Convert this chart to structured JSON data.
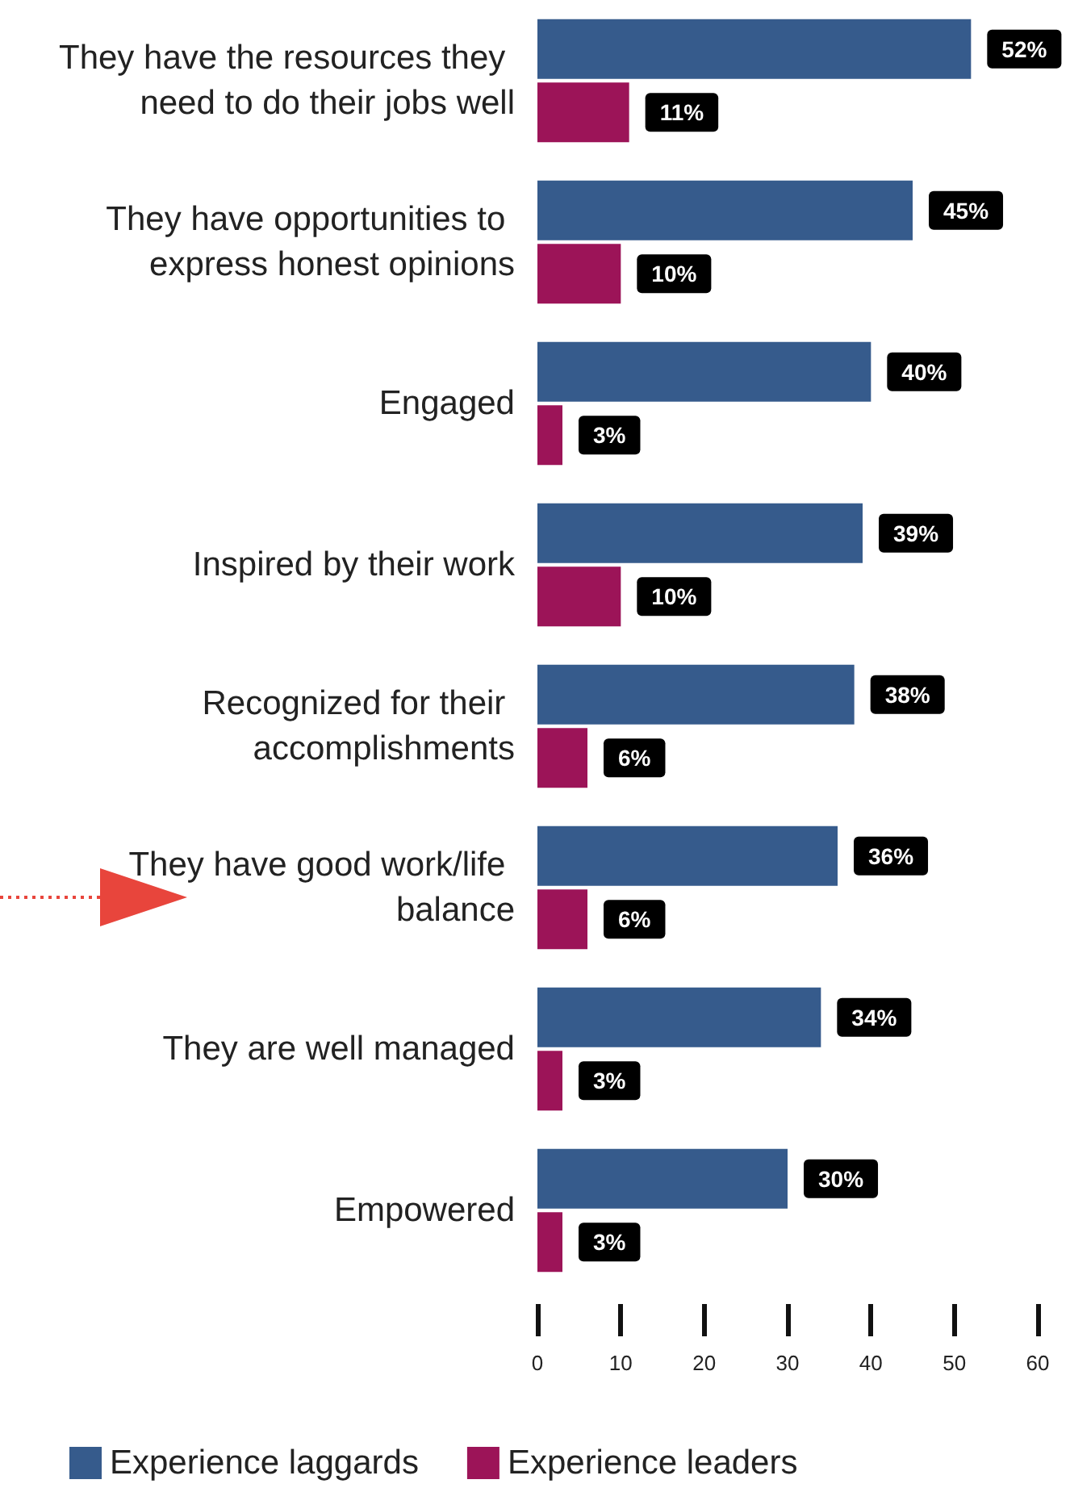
{
  "chart_data": {
    "type": "bar",
    "orientation": "horizontal",
    "categories": [
      "They have the resources they need to do their jobs well",
      "They have opportunities to express honest opinions",
      "Engaged",
      "Inspired by their work",
      "Recognized for their accomplishments",
      "They have good work/life balance",
      "They are well managed",
      "Empowered"
    ],
    "series": [
      {
        "name": "Experience laggards",
        "color": "#365b8c",
        "values": [
          52,
          45,
          40,
          39,
          38,
          36,
          34,
          30
        ],
        "value_labels": [
          "52%",
          "45%",
          "40%",
          "39%",
          "38%",
          "36%",
          "34%",
          "30%"
        ]
      },
      {
        "name": "Experience leaders",
        "color": "#9c1458",
        "values": [
          11,
          10,
          3,
          10,
          6,
          6,
          3,
          3
        ],
        "value_labels": [
          "11%",
          "10%",
          "3%",
          "10%",
          "6%",
          "6%",
          "3%",
          "3%"
        ]
      }
    ],
    "xlim": [
      0,
      60
    ],
    "xticks": [
      0,
      10,
      20,
      30,
      40,
      50,
      60
    ],
    "grid": false,
    "legend": "bottom"
  }
}
